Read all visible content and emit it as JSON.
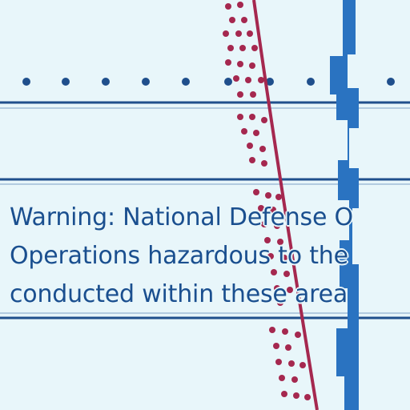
{
  "map": {
    "notice_lines": [
      "Warning: National Defense O",
      "Operations hazardous to the",
      "conducted within these area"
    ],
    "colors": {
      "background": "#e8f6fa",
      "text": "#1a4f8f",
      "blue_feature": "#2a73c1",
      "maroon_feature": "#a5284f",
      "line": "#1f4f8c"
    },
    "icons": [
      "dotted-boundary-line-icon",
      "maroon-dotted-band-icon",
      "blue-depth-contour-icon"
    ]
  }
}
